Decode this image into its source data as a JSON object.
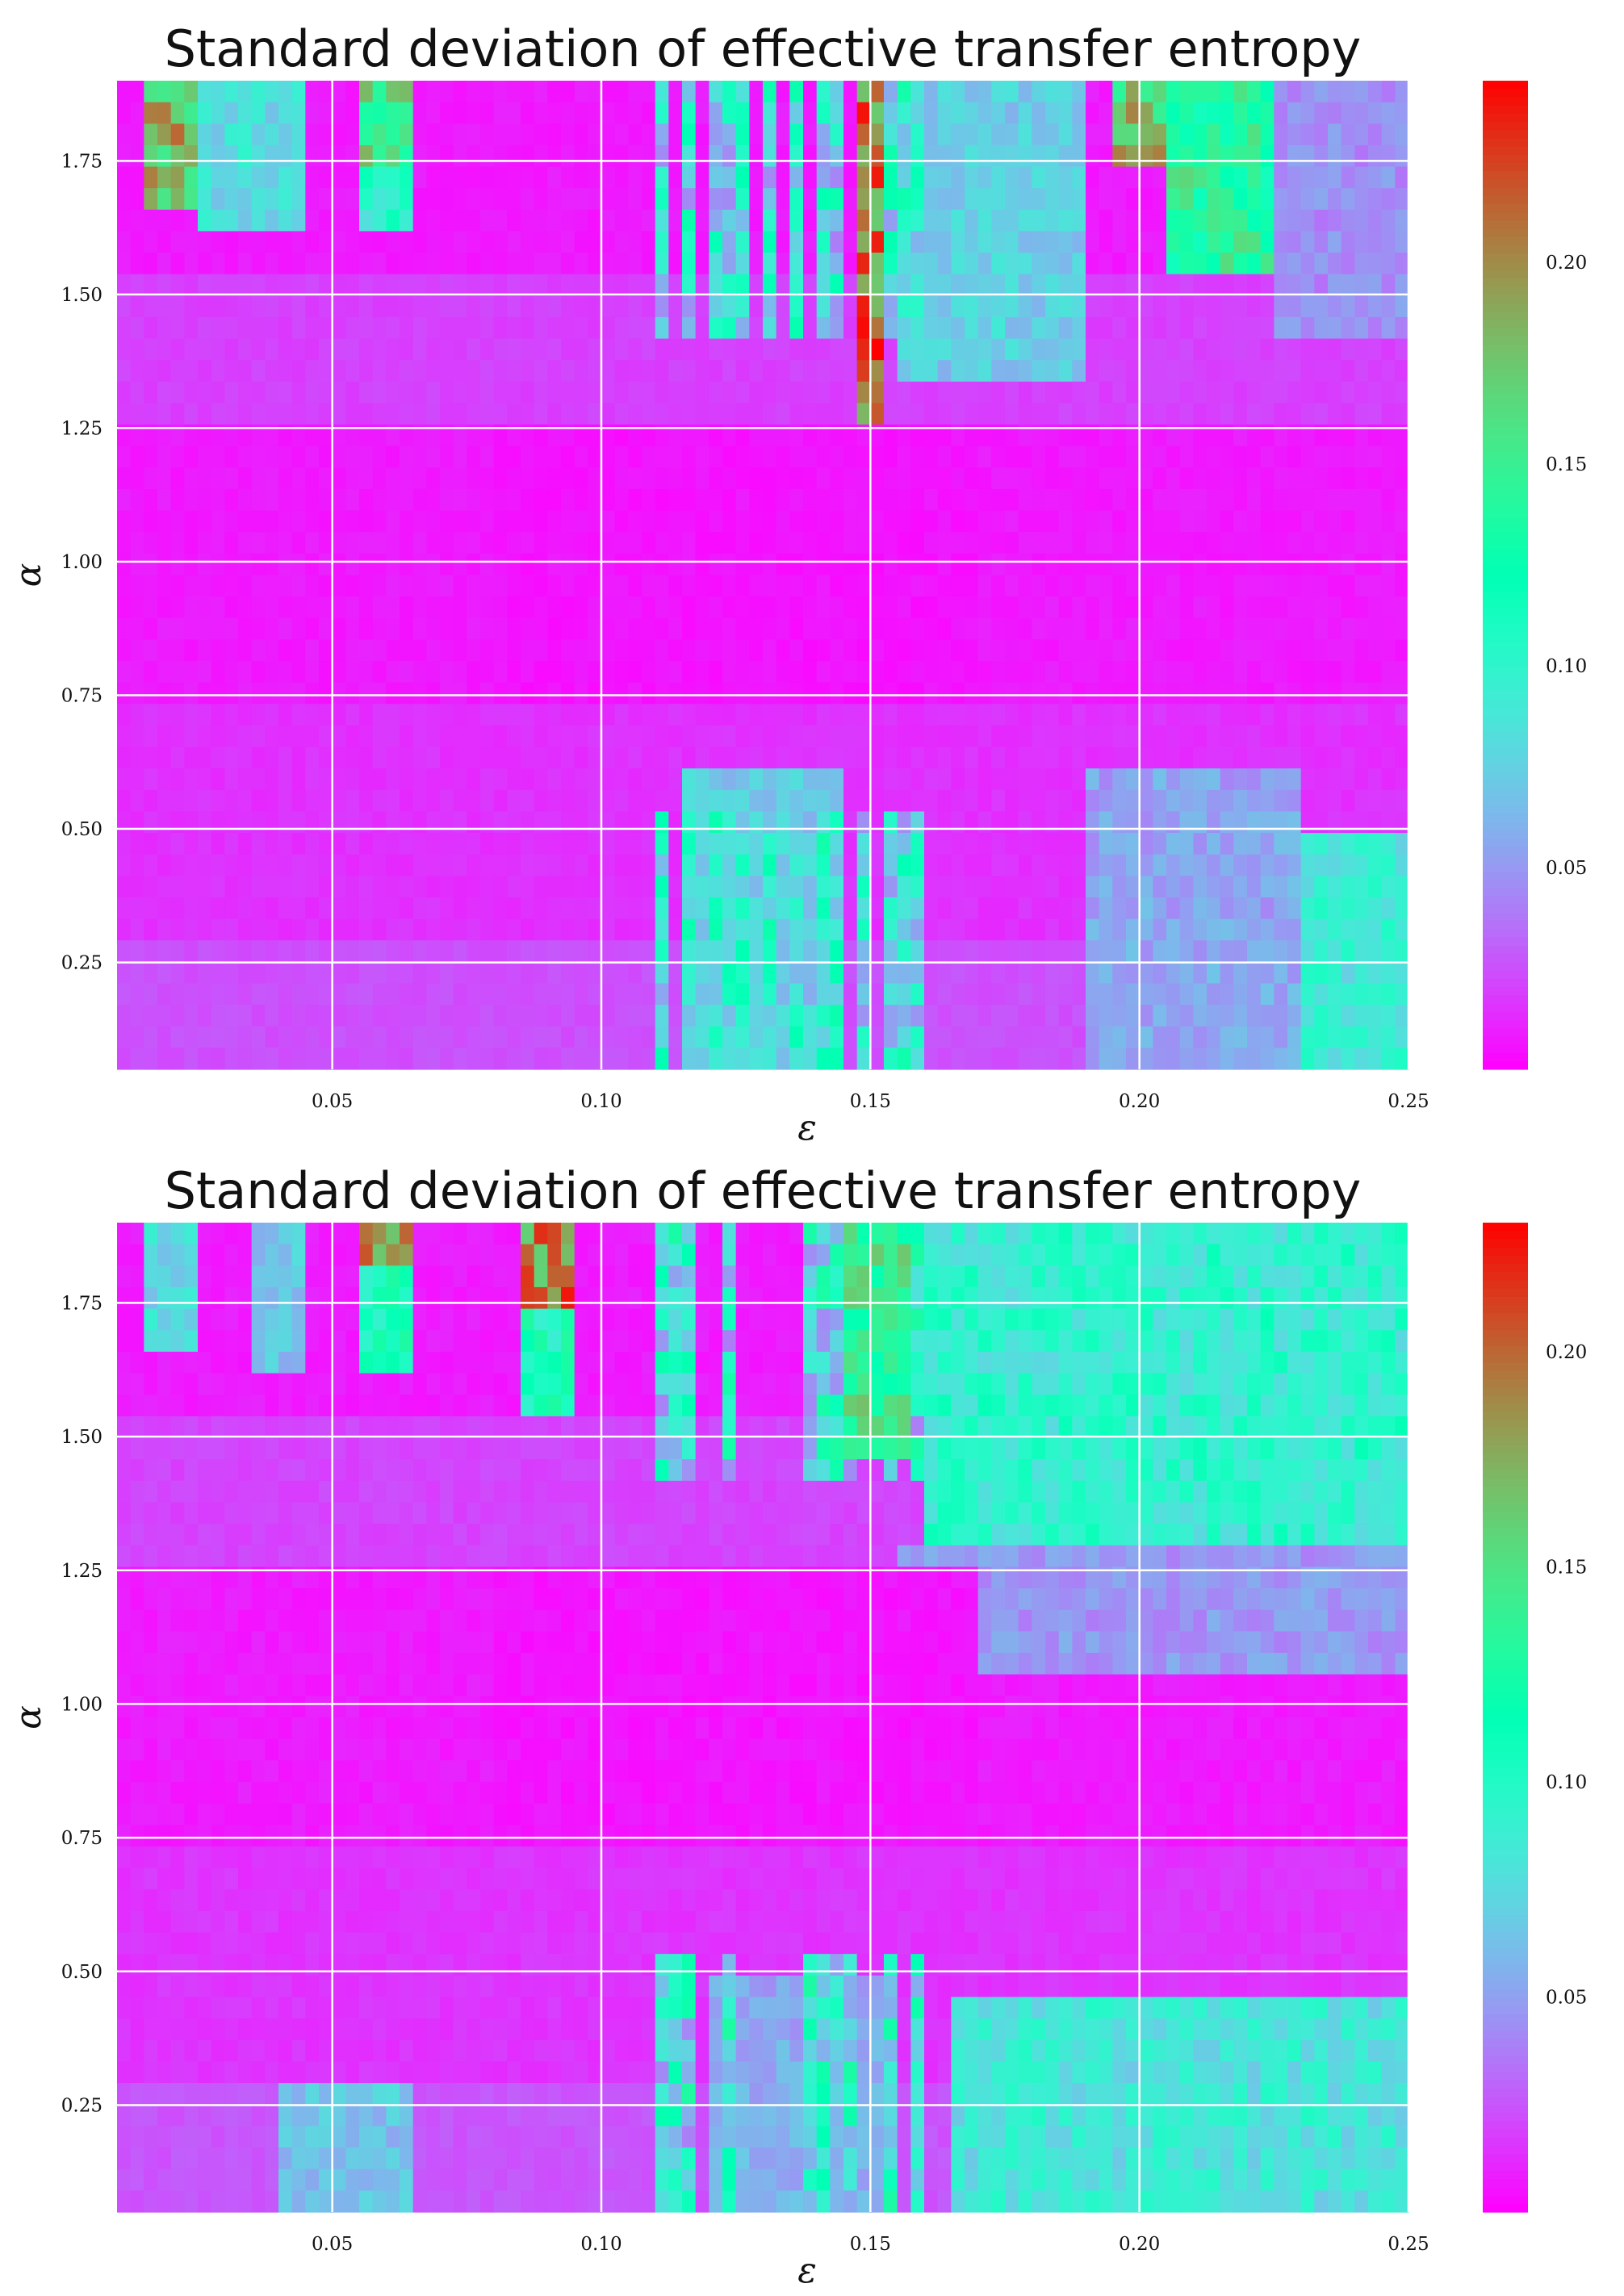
{
  "chart_data": [
    {
      "type": "heatmap",
      "title": "Standard deviation of effective transfer entropy",
      "xlabel": "ε",
      "ylabel": "α",
      "xlim": [
        0.01,
        0.25
      ],
      "ylim": [
        0.05,
        1.9
      ],
      "xticks": [
        0.05,
        0.1,
        0.15,
        0.2,
        0.25
      ],
      "xtick_labels": [
        "0.05",
        "0.10",
        "0.15",
        "0.20",
        "0.25"
      ],
      "yticks": [
        0.25,
        0.5,
        0.75,
        1.0,
        1.25,
        1.5,
        1.75
      ],
      "ytick_labels": [
        "0.25",
        "0.50",
        "0.75",
        "1.00",
        "1.25",
        "1.50",
        "1.75"
      ],
      "colorbar": {
        "colormap": "rainbow",
        "min": 0.0,
        "max": 0.245,
        "ticks": [
          0.05,
          0.1,
          0.15,
          0.2
        ],
        "tick_labels": [
          "0.05",
          "0.10",
          "0.15",
          "0.20"
        ]
      },
      "grid": true,
      "features": [
        {
          "eps": [
            0.015,
            0.025
          ],
          "alpha": [
            1.65,
            1.9
          ],
          "value": 0.2
        },
        {
          "eps": [
            0.025,
            0.045
          ],
          "alpha": [
            1.6,
            1.9
          ],
          "value": 0.09
        },
        {
          "eps": [
            0.055,
            0.065
          ],
          "alpha": [
            1.75,
            1.9
          ],
          "value": 0.17
        },
        {
          "eps": [
            0.055,
            0.065
          ],
          "alpha": [
            1.6,
            1.75
          ],
          "value": 0.11
        },
        {
          "eps": [
            0.148,
            0.152
          ],
          "alpha": [
            1.2,
            1.9
          ],
          "value": 0.23
        },
        {
          "eps": [
            0.155,
            0.19
          ],
          "alpha": [
            1.35,
            1.9
          ],
          "value": 0.08
        },
        {
          "eps": [
            0.195,
            0.205
          ],
          "alpha": [
            1.75,
            1.9
          ],
          "value": 0.19
        },
        {
          "eps": [
            0.205,
            0.225
          ],
          "alpha": [
            1.55,
            1.9
          ],
          "value": 0.15
        },
        {
          "eps": [
            0.225,
            0.25
          ],
          "alpha": [
            1.4,
            1.9
          ],
          "value": 0.05
        },
        {
          "eps": [
            0.115,
            0.145
          ],
          "alpha": [
            0.05,
            0.6
          ],
          "value": 0.08
        },
        {
          "eps": [
            0.19,
            0.23
          ],
          "alpha": [
            0.05,
            0.6
          ],
          "value": 0.06
        },
        {
          "eps": [
            0.23,
            0.25
          ],
          "alpha": [
            0.05,
            0.5
          ],
          "value": 0.1
        }
      ]
    },
    {
      "type": "heatmap",
      "title": "Standard deviation of effective transfer entropy",
      "xlabel": "ε",
      "ylabel": "α",
      "xlim": [
        0.01,
        0.25
      ],
      "ylim": [
        0.05,
        1.9
      ],
      "xticks": [
        0.05,
        0.1,
        0.15,
        0.2,
        0.25
      ],
      "xtick_labels": [
        "0.05",
        "0.10",
        "0.15",
        "0.20",
        "0.25"
      ],
      "yticks": [
        0.25,
        0.5,
        0.75,
        1.0,
        1.25,
        1.5,
        1.75
      ],
      "ytick_labels": [
        "0.25",
        "0.50",
        "0.75",
        "1.00",
        "1.25",
        "1.50",
        "1.75"
      ],
      "colorbar": {
        "colormap": "rainbow",
        "min": 0.0,
        "max": 0.23,
        "ticks": [
          0.05,
          0.1,
          0.15,
          0.2
        ],
        "tick_labels": [
          "0.05",
          "0.10",
          "0.15",
          "0.20"
        ]
      },
      "grid": true,
      "features": [
        {
          "eps": [
            0.015,
            0.025
          ],
          "alpha": [
            1.65,
            1.9
          ],
          "value": 0.08
        },
        {
          "eps": [
            0.035,
            0.045
          ],
          "alpha": [
            1.6,
            1.9
          ],
          "value": 0.07
        },
        {
          "eps": [
            0.055,
            0.065
          ],
          "alpha": [
            1.8,
            1.9
          ],
          "value": 0.22
        },
        {
          "eps": [
            0.055,
            0.065
          ],
          "alpha": [
            1.6,
            1.8
          ],
          "value": 0.12
        },
        {
          "eps": [
            0.085,
            0.095
          ],
          "alpha": [
            1.75,
            1.9
          ],
          "value": 0.21
        },
        {
          "eps": [
            0.085,
            0.095
          ],
          "alpha": [
            1.55,
            1.75
          ],
          "value": 0.12
        },
        {
          "eps": [
            0.145,
            0.158
          ],
          "alpha": [
            1.45,
            1.9
          ],
          "value": 0.15
        },
        {
          "eps": [
            0.16,
            0.25
          ],
          "alpha": [
            1.3,
            1.9
          ],
          "value": 0.1
        },
        {
          "eps": [
            0.155,
            0.25
          ],
          "alpha": [
            1.05,
            1.3
          ],
          "value": 0.05
        },
        {
          "eps": [
            0.04,
            0.065
          ],
          "alpha": [
            0.05,
            0.3
          ],
          "value": 0.07
        },
        {
          "eps": [
            0.165,
            0.25
          ],
          "alpha": [
            0.05,
            0.45
          ],
          "value": 0.09
        },
        {
          "eps": [
            0.12,
            0.155
          ],
          "alpha": [
            0.05,
            0.5
          ],
          "value": 0.06
        }
      ]
    }
  ]
}
